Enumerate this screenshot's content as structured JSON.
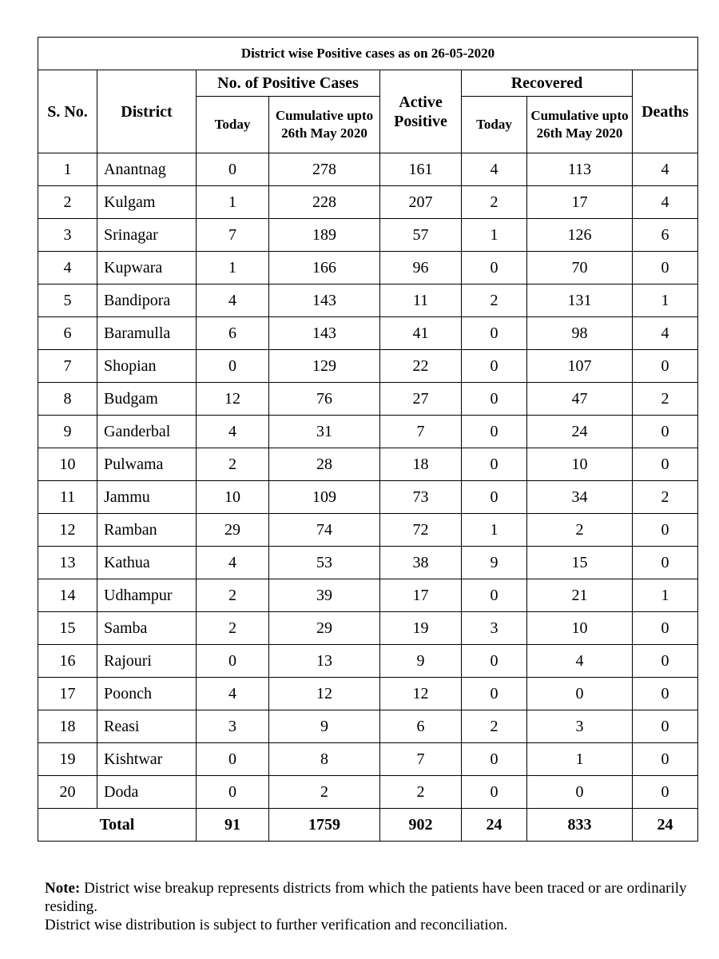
{
  "title": "District wise Positive cases as on 26-05-2020",
  "headers": {
    "sno": "S. No.",
    "district": "District",
    "positive_group": "No. of Positive Cases",
    "active_positive": "Active Positive",
    "recovered_group": "Recovered",
    "deaths": "Deaths",
    "positive_today": "Today",
    "positive_cumulative": "Cumulative upto 26th May 2020",
    "recovered_today": "Today",
    "recovered_cumulative": "Cumulative upto 26th May 2020"
  },
  "rows": [
    {
      "sno": "1",
      "district": "Anantnag",
      "pos_today": "0",
      "pos_cum": "278",
      "active": "161",
      "rec_today": "4",
      "rec_cum": "113",
      "deaths": "4"
    },
    {
      "sno": "2",
      "district": "Kulgam",
      "pos_today": "1",
      "pos_cum": "228",
      "active": "207",
      "rec_today": "2",
      "rec_cum": "17",
      "deaths": "4"
    },
    {
      "sno": "3",
      "district": "Srinagar",
      "pos_today": "7",
      "pos_cum": "189",
      "active": "57",
      "rec_today": "1",
      "rec_cum": "126",
      "deaths": "6"
    },
    {
      "sno": "4",
      "district": "Kupwara",
      "pos_today": "1",
      "pos_cum": "166",
      "active": "96",
      "rec_today": "0",
      "rec_cum": "70",
      "deaths": "0"
    },
    {
      "sno": "5",
      "district": "Bandipora",
      "pos_today": "4",
      "pos_cum": "143",
      "active": "11",
      "rec_today": "2",
      "rec_cum": "131",
      "deaths": "1"
    },
    {
      "sno": "6",
      "district": "Baramulla",
      "pos_today": "6",
      "pos_cum": "143",
      "active": "41",
      "rec_today": "0",
      "rec_cum": "98",
      "deaths": "4"
    },
    {
      "sno": "7",
      "district": "Shopian",
      "pos_today": "0",
      "pos_cum": "129",
      "active": "22",
      "rec_today": "0",
      "rec_cum": "107",
      "deaths": "0"
    },
    {
      "sno": "8",
      "district": "Budgam",
      "pos_today": "12",
      "pos_cum": "76",
      "active": "27",
      "rec_today": "0",
      "rec_cum": "47",
      "deaths": "2"
    },
    {
      "sno": "9",
      "district": "Ganderbal",
      "pos_today": "4",
      "pos_cum": "31",
      "active": "7",
      "rec_today": "0",
      "rec_cum": "24",
      "deaths": "0"
    },
    {
      "sno": "10",
      "district": "Pulwama",
      "pos_today": "2",
      "pos_cum": "28",
      "active": "18",
      "rec_today": "0",
      "rec_cum": "10",
      "deaths": "0"
    },
    {
      "sno": "11",
      "district": "Jammu",
      "pos_today": "10",
      "pos_cum": "109",
      "active": "73",
      "rec_today": "0",
      "rec_cum": "34",
      "deaths": "2"
    },
    {
      "sno": "12",
      "district": "Ramban",
      "pos_today": "29",
      "pos_cum": "74",
      "active": "72",
      "rec_today": "1",
      "rec_cum": "2",
      "deaths": "0"
    },
    {
      "sno": "13",
      "district": "Kathua",
      "pos_today": "4",
      "pos_cum": "53",
      "active": "38",
      "rec_today": "9",
      "rec_cum": "15",
      "deaths": "0"
    },
    {
      "sno": "14",
      "district": "Udhampur",
      "pos_today": "2",
      "pos_cum": "39",
      "active": "17",
      "rec_today": "0",
      "rec_cum": "21",
      "deaths": "1"
    },
    {
      "sno": "15",
      "district": "Samba",
      "pos_today": "2",
      "pos_cum": "29",
      "active": "19",
      "rec_today": "3",
      "rec_cum": "10",
      "deaths": "0"
    },
    {
      "sno": "16",
      "district": "Rajouri",
      "pos_today": "0",
      "pos_cum": "13",
      "active": "9",
      "rec_today": "0",
      "rec_cum": "4",
      "deaths": "0"
    },
    {
      "sno": "17",
      "district": "Poonch",
      "pos_today": "4",
      "pos_cum": "12",
      "active": "12",
      "rec_today": "0",
      "rec_cum": "0",
      "deaths": "0"
    },
    {
      "sno": "18",
      "district": "Reasi",
      "pos_today": "3",
      "pos_cum": "9",
      "active": "6",
      "rec_today": "2",
      "rec_cum": "3",
      "deaths": "0"
    },
    {
      "sno": "19",
      "district": "Kishtwar",
      "pos_today": "0",
      "pos_cum": "8",
      "active": "7",
      "rec_today": "0",
      "rec_cum": "1",
      "deaths": "0"
    },
    {
      "sno": "20",
      "district": "Doda",
      "pos_today": "0",
      "pos_cum": "2",
      "active": "2",
      "rec_today": "0",
      "rec_cum": "0",
      "deaths": "0"
    }
  ],
  "total": {
    "label": "Total",
    "pos_today": "91",
    "pos_cum": "1759",
    "active": "902",
    "rec_today": "24",
    "rec_cum": "833",
    "deaths": "24"
  },
  "note": {
    "label": "Note:",
    "line1": " District wise breakup represents districts from which the patients have been traced or are ordinarily residing.",
    "line2": "District wise distribution is subject to further verification and reconciliation."
  }
}
